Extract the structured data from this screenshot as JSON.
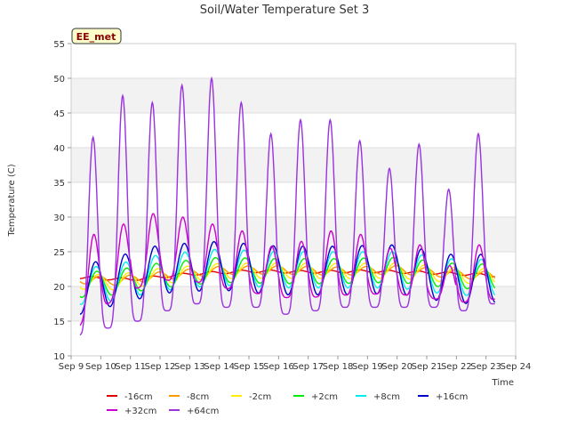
{
  "chart_data": {
    "type": "line",
    "title": "Soil/Water Temperature Set 3",
    "badge": "EE_met",
    "xlabel": "Time",
    "ylabel": "Temperature (C)",
    "ylim": [
      10,
      55
    ],
    "xlim": [
      9,
      24
    ],
    "yticks": [
      10,
      15,
      20,
      25,
      30,
      35,
      40,
      45,
      50,
      55
    ],
    "xticks": [
      9,
      10,
      11,
      12,
      13,
      14,
      15,
      16,
      17,
      18,
      19,
      20,
      21,
      22,
      23,
      24
    ],
    "xtick_labels": [
      "Sep 9",
      "Sep 10",
      "Sep 11",
      "Sep 12",
      "Sep 13",
      "Sep 14",
      "Sep 15",
      "Sep 16",
      "Sep 17",
      "Sep 18",
      "Sep 19",
      "Sep 20",
      "Sep 21",
      "Sep 22",
      "Sep 23",
      "Sep 24"
    ],
    "grid": "horizontal alternating bands",
    "legend_position": "bottom",
    "series": [
      {
        "name": "-16cm",
        "color": "#dd0000",
        "x_start": 9.3,
        "x_end": 23.3,
        "base_x": [
          9.3,
          11.0,
          13.0,
          15.0,
          17.0,
          19.0,
          21.0,
          23.3
        ],
        "base_y": [
          21.3,
          21.0,
          21.8,
          22.2,
          22.1,
          22.2,
          22.0,
          21.6
        ],
        "amp": 0.2,
        "lag": 0.1,
        "peaks": []
      },
      {
        "name": "-8cm",
        "color": "#ff9900",
        "x_start": 9.3,
        "x_end": 23.3,
        "base_x": [
          9.3,
          10.5,
          12.0,
          14.0,
          16.0,
          18.0,
          20.0,
          22.0,
          23.3
        ],
        "base_y": [
          21.0,
          20.8,
          21.5,
          22.3,
          22.4,
          22.2,
          22.4,
          21.8,
          21.5
        ],
        "amp": 0.6,
        "lag": 0.35,
        "peaks": []
      },
      {
        "name": "-2cm",
        "color": "#ffee00",
        "x_start": 9.3,
        "x_end": 23.3,
        "base_x": [
          9.3,
          10.5,
          12.0,
          14.0,
          16.0,
          18.0,
          20.0,
          22.0,
          23.3
        ],
        "base_y": [
          20.7,
          20.6,
          21.5,
          22.2,
          22.3,
          22.2,
          22.3,
          21.6,
          21.4
        ],
        "amp": 1.1,
        "lag": 0.3,
        "peaks": []
      },
      {
        "name": "+2cm",
        "color": "#00ee00",
        "x_start": 9.3,
        "x_end": 23.3,
        "base_x": [
          9.3,
          10.5,
          12.0,
          14.0,
          16.0,
          18.0,
          20.0,
          22.0,
          23.3
        ],
        "base_y": [
          20.2,
          20.6,
          21.6,
          22.4,
          22.2,
          22.2,
          22.4,
          21.5,
          21.4
        ],
        "amp": 1.8,
        "lag": 0.25,
        "peaks": []
      },
      {
        "name": "+8cm",
        "color": "#00eeee",
        "x_start": 9.3,
        "x_end": 23.3,
        "base_x": [
          9.3,
          10.5,
          12.0,
          14.0,
          16.0,
          18.0,
          20.0,
          22.0,
          23.3
        ],
        "base_y": [
          20.0,
          20.6,
          22.0,
          22.8,
          22.4,
          22.4,
          22.4,
          21.3,
          21.3
        ],
        "amp": 2.6,
        "lag": 0.22,
        "peaks": []
      },
      {
        "name": "+16cm",
        "color": "#0000cc",
        "x_start": 9.3,
        "x_end": 23.3,
        "base_x": [
          9.3,
          10.5,
          12.0,
          14.0,
          16.0,
          18.0,
          20.0,
          22.0,
          23.3
        ],
        "base_y": [
          19.5,
          20.8,
          22.5,
          23.0,
          22.3,
          22.3,
          22.5,
          21.0,
          21.2
        ],
        "amp": 3.5,
        "lag": 0.2,
        "peaks": []
      },
      {
        "name": "+32cm",
        "color": "#cc00cc",
        "x_start": 9.3,
        "x_end": 23.3,
        "base_x": [
          9.3,
          10.0,
          11.0,
          12.0,
          13.0,
          14.0,
          15.0,
          16.0,
          17.0,
          18.0,
          19.0,
          20.0,
          21.0,
          22.0,
          23.0,
          23.3
        ],
        "base_y": [
          18.0,
          20.5,
          23.0,
          24.5,
          24.5,
          23.5,
          22.8,
          22.0,
          22.0,
          22.3,
          22.5,
          22.5,
          22.0,
          21.3,
          21.5,
          21.8
        ],
        "amp": 4.5,
        "lag": 0.15,
        "peaks": [
          27.5,
          29.0,
          30.5,
          30.0,
          29.0,
          28.0,
          25.8,
          26.5,
          28.0,
          27.5,
          25.5,
          26.0,
          23.0,
          26.0
        ]
      },
      {
        "name": "+64cm",
        "color": "#9933dd",
        "x_start": 9.3,
        "x_end": 23.3,
        "base_x": [
          9.3,
          23.3
        ],
        "base_y": [
          14.0,
          17.0
        ],
        "amp": 0,
        "lag": 0.12,
        "peaks": [
          41.5,
          47.5,
          46.5,
          49.0,
          50.0,
          46.5,
          42.0,
          44.0,
          44.0,
          41.0,
          37.0,
          40.5,
          34.0,
          42.0
        ],
        "troughs": [
          13.0,
          14.0,
          15.0,
          16.5,
          17.5,
          17.0,
          17.0,
          16.0,
          16.5,
          17.0,
          17.0,
          17.0,
          17.0,
          16.5,
          17.5
        ]
      }
    ]
  }
}
